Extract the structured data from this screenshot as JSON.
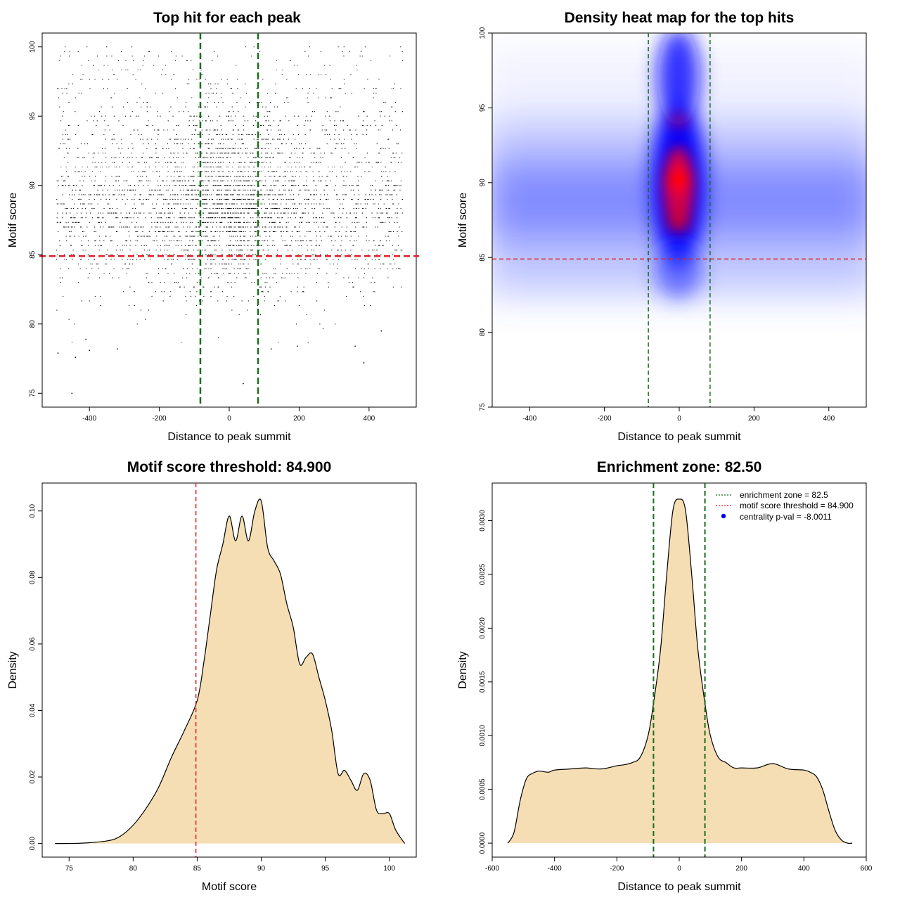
{
  "chart_data": [
    {
      "type": "scatter",
      "title": "Top hit for each peak",
      "xlabel": "Distance to peak summit",
      "ylabel": "Motif score",
      "xlim": [
        -535,
        535
      ],
      "ylim": [
        74.0,
        101.0
      ],
      "xticks": [
        -400,
        -200,
        0,
        200,
        400
      ],
      "yticks": [
        75,
        80,
        85,
        90,
        95,
        100
      ],
      "hlines": [
        {
          "value": 84.9,
          "color": "#e0202a",
          "style": "dashed"
        }
      ],
      "vlines": [
        {
          "value": -82.5,
          "color": "#1a6e1a",
          "style": "dashed"
        },
        {
          "value": 82.5,
          "color": "#1a6e1a",
          "style": "dashed"
        }
      ],
      "points_summary": "dense point cloud across x -500..500, y 75..100, densest near x=0, y 87-92",
      "outliers": [
        [
          -490,
          77.9
        ],
        [
          -450,
          75.0
        ],
        [
          -440,
          77.6
        ],
        [
          -410,
          78.9
        ],
        [
          -400,
          78.1
        ],
        [
          -320,
          78.2
        ],
        [
          40,
          75.7
        ],
        [
          120,
          78.2
        ],
        [
          195,
          78.4
        ],
        [
          360,
          78.4
        ],
        [
          385,
          77.2
        ],
        [
          435,
          79.5
        ]
      ]
    },
    {
      "type": "heatmap",
      "title": "Density heat map for the top hits",
      "xlabel": "Distance to peak summit",
      "ylabel": "Motif score",
      "xlim": [
        -500,
        500
      ],
      "ylim": [
        75.0,
        100.0
      ],
      "xticks": [
        -400,
        -200,
        0,
        200,
        400
      ],
      "yticks": [
        75,
        80,
        85,
        90,
        95,
        100
      ],
      "colors": [
        "#ffffff",
        "#0000ff",
        "#ff0000"
      ],
      "hotspot": {
        "x": 0,
        "y": 90.3
      },
      "hlines": [
        {
          "value": 84.9,
          "color": "#e0202a",
          "style": "dashed"
        }
      ],
      "vlines": [
        {
          "value": -82.5,
          "color": "#1a6e1a",
          "style": "dashed"
        },
        {
          "value": 82.5,
          "color": "#1a6e1a",
          "style": "dashed"
        }
      ]
    },
    {
      "type": "area",
      "title": "Motif score threshold: 84.900",
      "xlabel": "Motif score",
      "ylabel": "Density",
      "xlim": [
        72.9,
        102.1
      ],
      "ylim": [
        -0.0041,
        0.1084
      ],
      "xticks": [
        75,
        80,
        85,
        90,
        95,
        100
      ],
      "yticks": [
        0.0,
        0.02,
        0.04,
        0.06,
        0.08,
        0.1
      ],
      "ytick_labels": [
        "0.00",
        "0.02",
        "0.04",
        "0.06",
        "0.08",
        "0.10"
      ],
      "fill": "#f5deb3",
      "vlines": [
        {
          "value": 84.9,
          "color": "#e0202a",
          "style": "dashed"
        }
      ],
      "x": [
        73.9,
        76.0,
        78.0,
        79.0,
        80.0,
        81.0,
        82.0,
        83.0,
        84.0,
        85.0,
        85.5,
        86.0,
        86.5,
        87.0,
        87.5,
        88.0,
        88.5,
        89.0,
        89.5,
        90.0,
        90.5,
        91.0,
        91.5,
        92.0,
        92.5,
        93.0,
        93.5,
        94.0,
        94.5,
        95.0,
        95.5,
        96.0,
        96.5,
        97.0,
        97.5,
        98.0,
        98.5,
        99.0,
        99.5,
        100.0,
        100.5,
        101.2
      ],
      "y": [
        0.0,
        0.0001,
        0.0008,
        0.0022,
        0.0055,
        0.0105,
        0.017,
        0.026,
        0.034,
        0.043,
        0.054,
        0.068,
        0.082,
        0.09,
        0.0985,
        0.091,
        0.0985,
        0.091,
        0.1,
        0.103,
        0.089,
        0.085,
        0.081,
        0.072,
        0.065,
        0.054,
        0.056,
        0.057,
        0.05,
        0.043,
        0.034,
        0.021,
        0.022,
        0.019,
        0.016,
        0.021,
        0.019,
        0.01,
        0.009,
        0.009,
        0.004,
        0.0
      ]
    },
    {
      "type": "area",
      "title": "Enrichment zone: 82.50",
      "xlabel": "Distance to peak summit",
      "ylabel": "Density",
      "xlim": [
        -600,
        600
      ],
      "ylim": [
        -0.00013,
        0.00335
      ],
      "xticks": [
        -600,
        -400,
        -200,
        0,
        200,
        400,
        600
      ],
      "yticks": [
        0.0,
        0.0005,
        0.001,
        0.0015,
        0.002,
        0.0025,
        0.003
      ],
      "ytick_labels": [
        "0.0000",
        "0.0005",
        "0.0010",
        "0.0015",
        "0.0020",
        "0.0025",
        "0.0030"
      ],
      "fill": "#f5deb3",
      "vlines": [
        {
          "value": -82.5,
          "color": "#1a6e1a",
          "style": "dashed"
        },
        {
          "value": 82.5,
          "color": "#1a6e1a",
          "style": "dashed"
        }
      ],
      "x": [
        -550,
        -530,
        -510,
        -490,
        -470,
        -450,
        -420,
        -400,
        -350,
        -300,
        -250,
        -200,
        -175,
        -150,
        -125,
        -100,
        -82.5,
        -60,
        -40,
        -20,
        0,
        20,
        40,
        60,
        82.5,
        100,
        125,
        150,
        175,
        200,
        250,
        300,
        350,
        400,
        420,
        440,
        460,
        480,
        500,
        520,
        540,
        555
      ],
      "y": [
        0.0,
        0.0001,
        0.0004,
        0.0006,
        0.00065,
        0.00067,
        0.00066,
        0.00068,
        0.00069,
        0.0007,
        0.00069,
        0.00072,
        0.00073,
        0.00075,
        0.0008,
        0.001,
        0.0013,
        0.0018,
        0.0025,
        0.0031,
        0.0032,
        0.0031,
        0.0025,
        0.0018,
        0.0013,
        0.001,
        0.0008,
        0.00075,
        0.0007,
        0.0007,
        0.0007,
        0.00074,
        0.00069,
        0.00068,
        0.00066,
        0.00062,
        0.0005,
        0.0003,
        0.00012,
        3e-05,
        0.0,
        0.0
      ],
      "legend": [
        {
          "label": "enrichment zone = 82.5",
          "color": "#1a6e1a",
          "marker": "dotted-line"
        },
        {
          "label": "motif score threshold = 84.900",
          "color": "#e0202a",
          "marker": "dotted-line"
        },
        {
          "label": "centrality p-val = -8.0011",
          "color": "#0000ff",
          "marker": "dot"
        }
      ]
    }
  ]
}
